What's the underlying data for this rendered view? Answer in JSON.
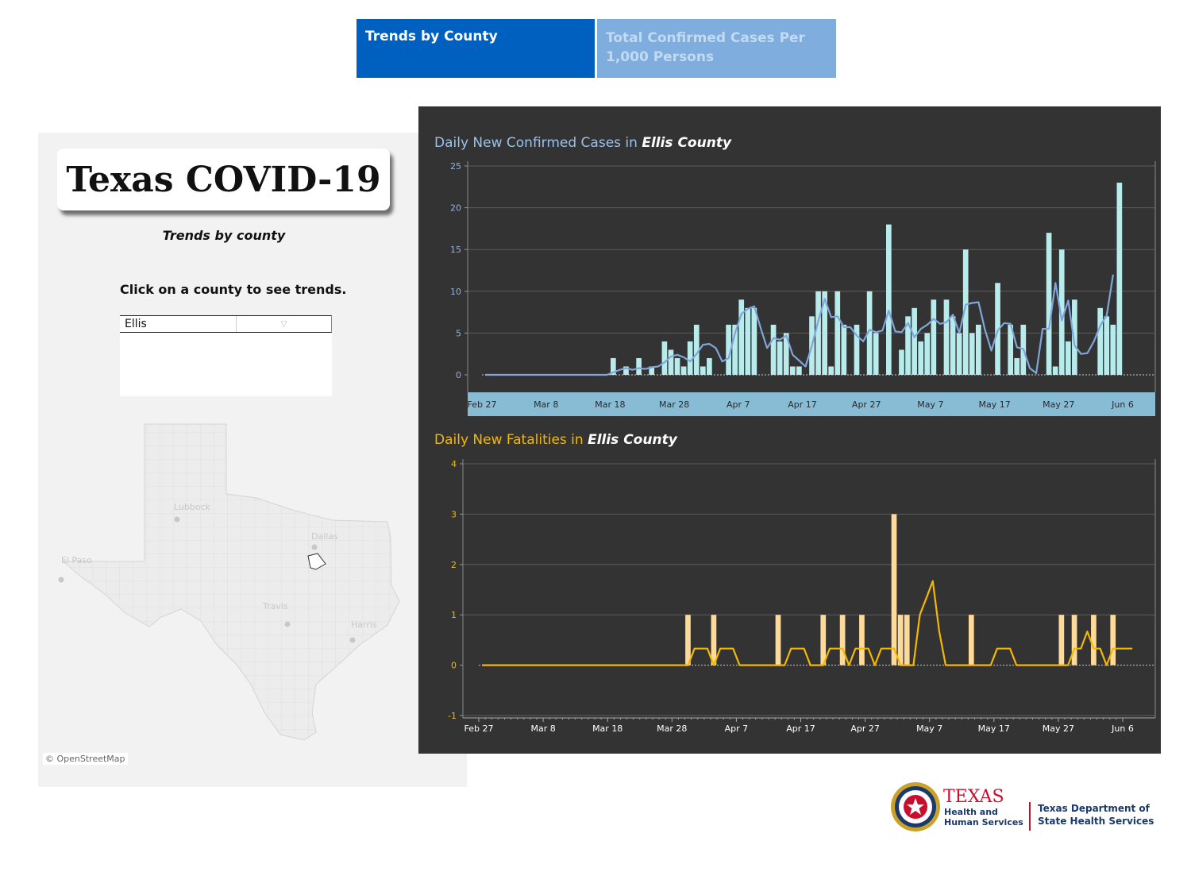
{
  "tabs": [
    {
      "label": "Trends by County",
      "active": true
    },
    {
      "label": "Total Confirmed Cases Per 1,000 Persons",
      "active": false
    }
  ],
  "left_panel": {
    "title": "Texas COVID-19",
    "subtitle": "Trends by county",
    "instruction": "Click on a county to see trends.",
    "county_selector": {
      "value": "Ellis"
    },
    "map": {
      "cities": [
        "Lubbock",
        "Dallas",
        "El Paso",
        "Travis",
        "Harris"
      ],
      "credit": "© OpenStreetMap"
    }
  },
  "footer": {
    "hhs_name": "TEXAS",
    "hhs_sub": "Health and Human Services",
    "dshs_name": "Texas Department of State Health Services"
  },
  "colors": {
    "cases_bar": "#b8ecec",
    "cases_line": "#7fa6db",
    "deaths_bar": "#fdd99a",
    "deaths_line": "#f5b800",
    "panel_bg": "#333333",
    "date_band": "#87bcd4"
  },
  "chart_data": [
    {
      "type": "bar",
      "title_prefix": "Daily New Confirmed Cases in ",
      "title_county": "Ellis County",
      "x_start": "Feb 27",
      "x_end": "Jun 6",
      "x_ticks": [
        "Feb 27",
        "Mar 8",
        "Mar 18",
        "Mar 28",
        "Apr 7",
        "Apr 17",
        "Apr 27",
        "May 7",
        "May 17",
        "May 27",
        "Jun 6"
      ],
      "ylim": [
        0,
        25
      ],
      "y_ticks": [
        0,
        5,
        10,
        15,
        20,
        25
      ],
      "bars": [
        0,
        0,
        0,
        0,
        0,
        0,
        0,
        0,
        0,
        0,
        0,
        0,
        0,
        0,
        0,
        0,
        0,
        0,
        0,
        0,
        2,
        0,
        1,
        0,
        2,
        0,
        1,
        0,
        4,
        3,
        2,
        1,
        4,
        6,
        1,
        2,
        0,
        0,
        6,
        6,
        9,
        8,
        8,
        0,
        0,
        6,
        4,
        5,
        1,
        1,
        0,
        7,
        10,
        10,
        1,
        10,
        6,
        0,
        6,
        0,
        10,
        5,
        0,
        18,
        0,
        3,
        7,
        8,
        4,
        5,
        9,
        0,
        9,
        7,
        5,
        15,
        5,
        6,
        0,
        0,
        11,
        0,
        6,
        2,
        6,
        0,
        0,
        0,
        17,
        1,
        15,
        4,
        9,
        0,
        0,
        0,
        8,
        7,
        6,
        23
      ],
      "series": [
        {
          "name": "7-day average",
          "values": [
            0,
            0,
            0,
            0,
            0,
            0,
            0,
            0,
            0,
            0,
            0,
            0,
            0,
            0,
            0,
            0,
            0,
            0,
            0,
            0,
            0.3,
            0.6,
            0.8,
            0.6,
            0.8,
            0.7,
            0.9,
            1,
            1.5,
            2.2,
            2.4,
            2.1,
            1.6,
            2.5,
            3.6,
            3.7,
            3.2,
            1.6,
            2,
            5,
            7.3,
            7.9,
            8.2,
            5.6,
            3.2,
            4.4,
            4.2,
            4.7,
            2.4,
            1.7,
            1,
            3.5,
            6.5,
            9.1,
            6.9,
            7,
            5.7,
            5.7,
            4.7,
            4,
            5.4,
            5.1,
            5.3,
            7.7,
            5.2,
            5.1,
            6.2,
            4.5,
            5.5,
            6,
            6.7,
            6.1,
            6.3,
            7.2,
            5,
            8.4,
            8.6,
            8.7,
            5.4,
            2.9,
            5.3,
            6.2,
            6.1,
            3.3,
            3.1,
            0.8,
            0.2,
            5.5,
            5.5,
            11,
            6.5,
            8.9,
            3.5,
            2.5,
            2.6,
            4,
            5.9,
            7.1,
            12
          ]
        }
      ]
    },
    {
      "type": "bar",
      "title_prefix": "Daily New Fatalities in ",
      "title_county": "Ellis County",
      "x_start": "Feb 27",
      "x_end": "Jun 6",
      "x_ticks": [
        "Feb 27",
        "Mar 8",
        "Mar 18",
        "Mar 28",
        "Apr 7",
        "Apr 17",
        "Apr 27",
        "May 7",
        "May 17",
        "May 27",
        "Jun 6"
      ],
      "ylim": [
        -1,
        4
      ],
      "y_ticks": [
        -1,
        0,
        1,
        2,
        3,
        4
      ],
      "bars": [
        0,
        0,
        0,
        0,
        0,
        0,
        0,
        0,
        0,
        0,
        0,
        0,
        0,
        0,
        0,
        0,
        0,
        0,
        0,
        0,
        0,
        0,
        0,
        0,
        0,
        0,
        0,
        0,
        0,
        0,
        0,
        0,
        1,
        0,
        0,
        0,
        1,
        0,
        0,
        0,
        0,
        0,
        0,
        0,
        0,
        0,
        1,
        0,
        0,
        0,
        0,
        0,
        0,
        1,
        0,
        0,
        1,
        0,
        0,
        1,
        0,
        0,
        0,
        0,
        3,
        1,
        1,
        0,
        0,
        0,
        0,
        0,
        0,
        0,
        0,
        0,
        1,
        0,
        0,
        0,
        0,
        0,
        0,
        0,
        0,
        0,
        0,
        0,
        0,
        0,
        1,
        0,
        1,
        0,
        0,
        1,
        0,
        0,
        1,
        0
      ],
      "series": [
        {
          "name": "7-day average",
          "values": [
            0,
            0,
            0,
            0,
            0,
            0,
            0,
            0,
            0,
            0,
            0,
            0,
            0,
            0,
            0,
            0,
            0,
            0,
            0,
            0,
            0,
            0,
            0,
            0,
            0,
            0,
            0,
            0,
            0,
            0,
            0,
            0,
            0,
            0.33,
            0.33,
            0.33,
            0,
            0.33,
            0.33,
            0.33,
            0,
            0,
            0,
            0,
            0,
            0,
            0,
            0,
            0.33,
            0.33,
            0.33,
            0,
            0,
            0,
            0.33,
            0.33,
            0.33,
            0,
            0.33,
            0.33,
            0.33,
            0,
            0.33,
            0.33,
            0.33,
            0,
            0,
            0,
            1,
            1.33,
            1.67,
            0.67,
            0,
            0,
            0,
            0,
            0,
            0,
            0,
            0,
            0.33,
            0.33,
            0.33,
            0,
            0,
            0,
            0,
            0,
            0,
            0,
            0,
            0,
            0.33,
            0.33,
            0.67,
            0.33,
            0.33,
            0,
            0.33,
            0.33,
            0.33,
            0.33
          ]
        }
      ]
    }
  ]
}
